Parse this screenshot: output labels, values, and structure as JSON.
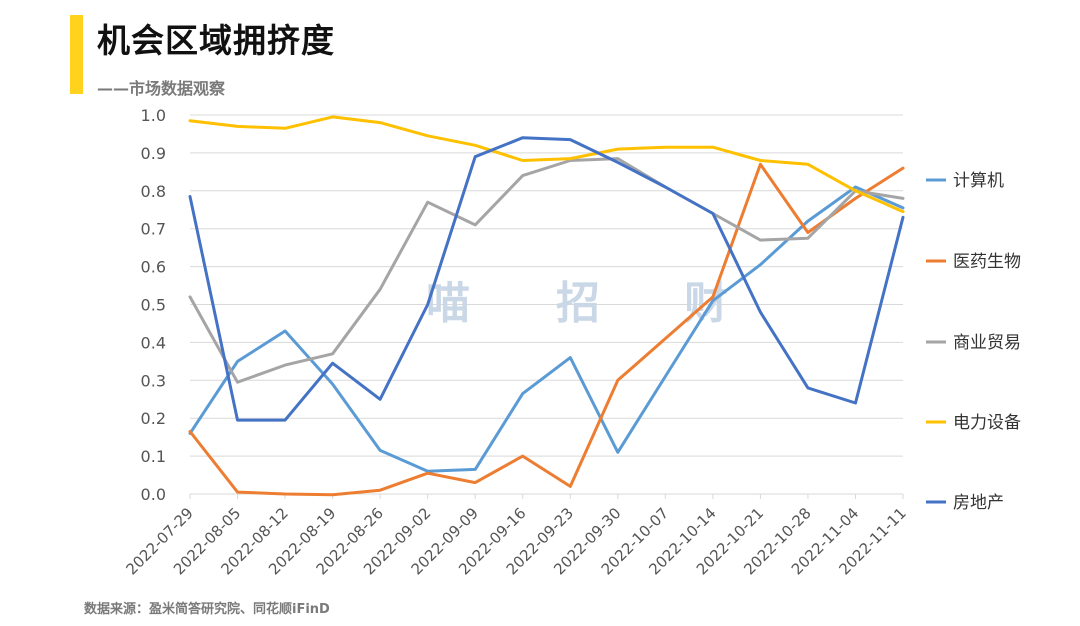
{
  "header": {
    "title": "机会区域拥挤度",
    "subtitle": "——市场数据观察"
  },
  "footer": {
    "source": "数据来源：盈米简答研究院、同花顺iFinD"
  },
  "watermark": [
    "喵",
    "招",
    "财"
  ],
  "colors": {
    "accent": "#FFD21E",
    "grid": "#d9d9d9"
  },
  "chart_data": {
    "type": "line",
    "title": "机会区域拥挤度",
    "xlabel": "",
    "ylabel": "",
    "ylim": [
      0,
      1.0
    ],
    "yticks": [
      "0.0",
      "0.1",
      "0.2",
      "0.3",
      "0.4",
      "0.5",
      "0.6",
      "0.7",
      "0.8",
      "0.9",
      "1.0"
    ],
    "grid": true,
    "legend_position": "right",
    "categories": [
      "2022-07-29",
      "2022-08-05",
      "2022-08-12",
      "2022-08-19",
      "2022-08-26",
      "2022-09-02",
      "2022-09-09",
      "2022-09-16",
      "2022-09-23",
      "2022-09-30",
      "2022-10-07",
      "2022-10-14",
      "2022-10-21",
      "2022-10-28",
      "2022-11-04",
      "2022-11-11"
    ],
    "series": [
      {
        "name": "计算机",
        "color": "#5B9BD5",
        "values": [
          0.16,
          0.35,
          0.43,
          0.29,
          0.115,
          0.06,
          0.065,
          0.265,
          0.36,
          0.11,
          0.31,
          0.51,
          0.605,
          0.72,
          0.81,
          0.755
        ]
      },
      {
        "name": "医药生物",
        "color": "#ED7D31",
        "values": [
          0.165,
          0.005,
          0.0,
          -0.002,
          0.01,
          0.055,
          0.03,
          0.1,
          0.02,
          0.3,
          0.41,
          0.52,
          0.87,
          0.69,
          0.78,
          0.86
        ]
      },
      {
        "name": "商业贸易",
        "color": "#A5A5A5",
        "values": [
          0.52,
          0.295,
          0.34,
          0.37,
          0.54,
          0.77,
          0.71,
          0.84,
          0.88,
          0.885,
          0.81,
          0.74,
          0.67,
          0.675,
          0.8,
          0.78
        ]
      },
      {
        "name": "电力设备",
        "color": "#FFC000",
        "values": [
          0.985,
          0.97,
          0.965,
          0.995,
          0.98,
          0.945,
          0.92,
          0.88,
          0.885,
          0.91,
          0.915,
          0.915,
          0.88,
          0.87,
          0.8,
          0.745
        ]
      },
      {
        "name": "房地产",
        "color": "#4472C4",
        "values": [
          0.785,
          0.195,
          0.195,
          0.345,
          0.25,
          0.5,
          0.89,
          0.94,
          0.935,
          0.875,
          0.81,
          0.74,
          0.48,
          0.28,
          0.24,
          0.73
        ]
      }
    ]
  }
}
